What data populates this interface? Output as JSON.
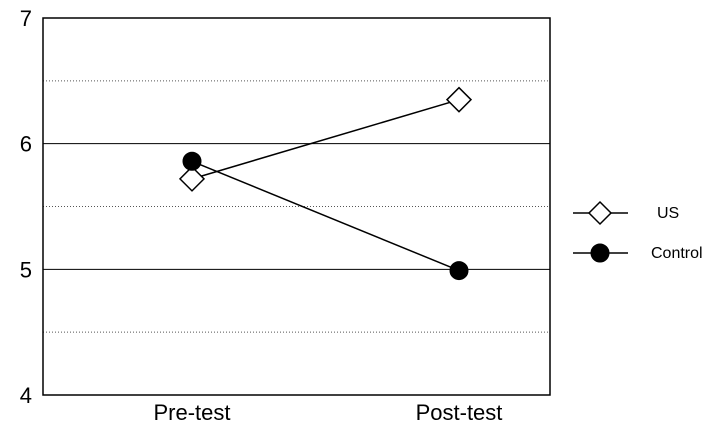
{
  "chart_data": {
    "type": "line",
    "categories": [
      "Pre-test",
      "Post-test"
    ],
    "series": [
      {
        "name": "US",
        "values": [
          5.72,
          6.35
        ],
        "marker": "diamond-open"
      },
      {
        "name": "Control",
        "values": [
          5.86,
          4.99
        ],
        "marker": "circle-filled"
      }
    ],
    "title": "",
    "xlabel": "",
    "ylabel": "",
    "ylim": [
      4,
      7
    ],
    "yticks": [
      "4",
      "5",
      "6",
      "7"
    ],
    "grid": {
      "major": [
        5,
        6
      ],
      "minor": [
        4.5,
        5.5,
        6.5
      ]
    },
    "legend": "right",
    "colors": {
      "line": "#000000",
      "marker_fill_filled": "#000000",
      "marker_fill_open": "#ffffff"
    }
  }
}
